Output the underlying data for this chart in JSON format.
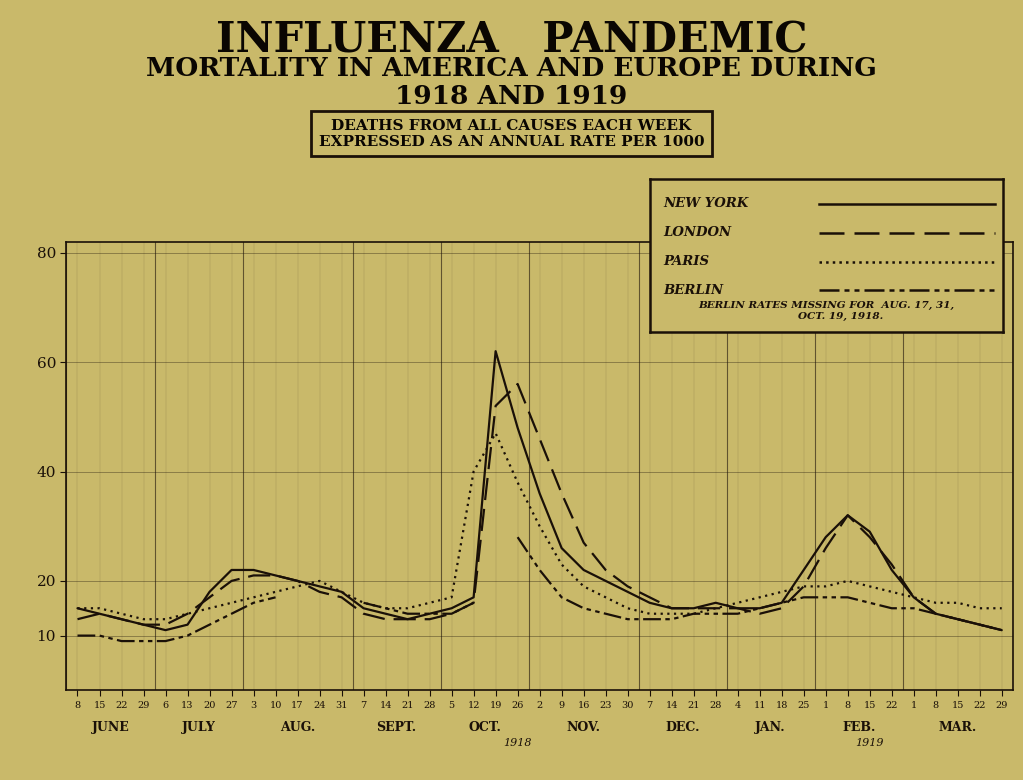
{
  "title_line1": "INFLUENZA   PANDEMIC",
  "title_line2": "MORTALITY IN AMERICA AND EUROPE DURING",
  "title_line3": "1918 AND 1919",
  "subtitle_line1": "DEATHS FROM ALL CAUSES EACH WEEK",
  "subtitle_line2": "EXPRESSED AS AN ANNUAL RATE PER 1000",
  "bg_color": "#c9b96a",
  "line_color": "#1a1008",
  "ylim": [
    0,
    82
  ],
  "yticks": [
    10,
    20,
    40,
    60,
    80
  ],
  "month_lengths": [
    4,
    4,
    5,
    4,
    4,
    5,
    4,
    4,
    4,
    5
  ],
  "month_names": [
    "JUNE",
    "JULY",
    "AUG.",
    "SEPT.",
    "OCT.",
    "NOV.",
    "DEC.",
    "JAN.",
    "FEB.",
    "MAR."
  ],
  "week_labels": [
    "8",
    "15",
    "22",
    "29",
    "6",
    "13",
    "20",
    "27",
    "3",
    "10",
    "17",
    "24",
    "31",
    "7",
    "14",
    "21",
    "28",
    "5",
    "12",
    "19",
    "26",
    "2",
    "9",
    "16",
    "23",
    "30",
    "7",
    "14",
    "21",
    "28",
    "4",
    "11",
    "18",
    "25",
    "1",
    "8",
    "15",
    "22",
    "1",
    "8",
    "15",
    "22",
    "29"
  ],
  "new_york": [
    15,
    14,
    13,
    12,
    11,
    12,
    18,
    22,
    22,
    21,
    20,
    19,
    18,
    15,
    14,
    13,
    14,
    15,
    17,
    62,
    48,
    36,
    26,
    22,
    20,
    18,
    16,
    15,
    15,
    16,
    15,
    15,
    16,
    22,
    28,
    32,
    29,
    22,
    17,
    14,
    13,
    12,
    11
  ],
  "london": [
    13,
    14,
    13,
    12,
    12,
    14,
    17,
    20,
    21,
    21,
    20,
    18,
    17,
    14,
    13,
    13,
    13,
    14,
    16,
    52,
    56,
    46,
    36,
    27,
    22,
    19,
    17,
    15,
    15,
    15,
    15,
    14,
    15,
    19,
    26,
    32,
    28,
    23,
    17,
    14,
    13,
    12,
    11
  ],
  "paris": [
    15,
    15,
    14,
    13,
    13,
    14,
    15,
    16,
    17,
    18,
    19,
    20,
    18,
    16,
    15,
    15,
    16,
    17,
    40,
    47,
    38,
    30,
    23,
    19,
    17,
    15,
    14,
    14,
    14,
    15,
    16,
    17,
    18,
    19,
    19,
    20,
    19,
    18,
    17,
    16,
    16,
    15,
    15
  ],
  "berlin": [
    10,
    10,
    9,
    9,
    9,
    10,
    12,
    14,
    16,
    17,
    null,
    18,
    null,
    16,
    15,
    14,
    14,
    14,
    16,
    null,
    28,
    22,
    17,
    15,
    14,
    13,
    13,
    13,
    14,
    14,
    14,
    15,
    16,
    17,
    17,
    17,
    16,
    15,
    15,
    14,
    13,
    12,
    11
  ],
  "legend_names": [
    "NEW YORK",
    "LONDON",
    "PARIS",
    "BERLIN"
  ],
  "legend_note": "BERLIN RATES MISSING FOR AUG. 17, 31,\nOCT. 19, 1918."
}
